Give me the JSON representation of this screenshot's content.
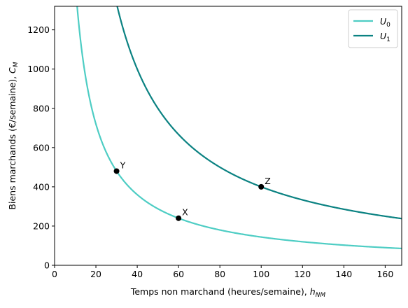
{
  "chart_data": {
    "type": "line",
    "xlabel": {
      "prefix": "Temps non marchand (heures/semaine), ",
      "var": "h",
      "sub": "NM"
    },
    "ylabel": {
      "prefix": "Biens marchands (€/semaine), ",
      "var": "C",
      "sub": "M"
    },
    "xlim": [
      0,
      168
    ],
    "ylim": [
      0,
      1320
    ],
    "x_ticks": [
      0,
      20,
      40,
      60,
      80,
      100,
      120,
      140,
      160
    ],
    "y_ticks": [
      0,
      200,
      400,
      600,
      800,
      1000,
      1200
    ],
    "grid": false,
    "legend_position": "top-right",
    "series": [
      {
        "name": "U0",
        "label_main": "U",
        "label_sub": "0",
        "color": "#4ecdc4",
        "function": "y = k / x",
        "k": 14400
      },
      {
        "name": "U1",
        "label_main": "U",
        "label_sub": "1",
        "color": "#0b8282",
        "function": "y = k / x",
        "k": 40000
      }
    ],
    "points": [
      {
        "label": "Y",
        "x": 30,
        "y": 480
      },
      {
        "label": "X",
        "x": 60,
        "y": 240
      },
      {
        "label": "Z",
        "x": 100,
        "y": 400
      }
    ]
  }
}
